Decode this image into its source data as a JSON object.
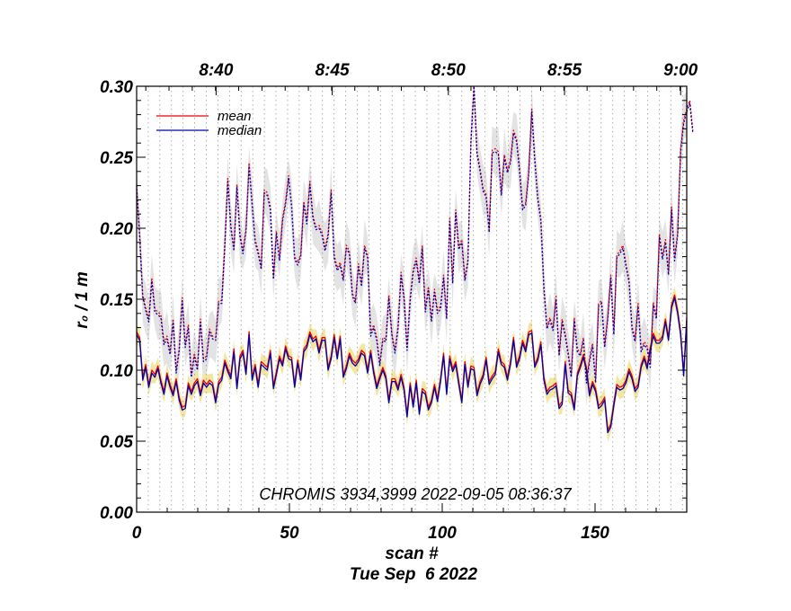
{
  "chart_data": {
    "type": "line",
    "title": "",
    "annotation": "CHROMIS 3934,3999 2022-09-05 08:36:37",
    "xlabel": "scan #",
    "ylabel": "r₀ / 1 m",
    "date_label": "Tue Sep  6 2022",
    "xlim": [
      0,
      180
    ],
    "ylim": [
      0.0,
      0.3
    ],
    "x_ticks": [
      0,
      50,
      100,
      150
    ],
    "x_tick_labels": [
      "0",
      "50",
      "100",
      "150"
    ],
    "y_ticks": [
      0.0,
      0.05,
      0.1,
      0.15,
      0.2,
      0.25,
      0.3
    ],
    "y_tick_labels": [
      "0.00",
      "0.05",
      "0.10",
      "0.15",
      "0.20",
      "0.25",
      "0.30"
    ],
    "top_axis": [
      {
        "label": "8:40",
        "scan": 26
      },
      {
        "label": "8:45",
        "scan": 64
      },
      {
        "label": "8:50",
        "scan": 102
      },
      {
        "label": "8:55",
        "scan": 140
      },
      {
        "label": "9:00",
        "scan": 178
      }
    ],
    "vertical_grid_every_scans": 3.8,
    "legend": {
      "position": "top-left",
      "entries": [
        {
          "name": "mean",
          "color": "#ee0000"
        },
        {
          "name": "median",
          "color": "#0000aa"
        }
      ]
    },
    "colors": {
      "mean": "#ee0000",
      "median": "#0000aa",
      "band_low": "#f2e6a2",
      "band_high": "#e3e3e3",
      "grid": "#999999"
    },
    "low_median": [
      0.125,
      0.121,
      0.093,
      0.102,
      0.088,
      0.098,
      0.095,
      0.101,
      0.091,
      0.083,
      0.096,
      0.088,
      0.082,
      0.092,
      0.079,
      0.072,
      0.073,
      0.089,
      0.083,
      0.089,
      0.092,
      0.082,
      0.091,
      0.088,
      0.091,
      0.089,
      0.077,
      0.09,
      0.093,
      0.105,
      0.099,
      0.094,
      0.113,
      0.087,
      0.108,
      0.112,
      0.097,
      0.125,
      0.093,
      0.102,
      0.088,
      0.104,
      0.102,
      0.1,
      0.112,
      0.087,
      0.097,
      0.108,
      0.103,
      0.115,
      0.108,
      0.107,
      0.088,
      0.105,
      0.093,
      0.113,
      0.116,
      0.125,
      0.12,
      0.122,
      0.112,
      0.121,
      0.121,
      0.1,
      0.108,
      0.123,
      0.108,
      0.122,
      0.095,
      0.101,
      0.11,
      0.105,
      0.103,
      0.106,
      0.112,
      0.11,
      0.098,
      0.112,
      0.098,
      0.087,
      0.094,
      0.1,
      0.094,
      0.077,
      0.092,
      0.092,
      0.086,
      0.095,
      0.086,
      0.067,
      0.089,
      0.074,
      0.091,
      0.069,
      0.085,
      0.083,
      0.072,
      0.077,
      0.088,
      0.078,
      0.092,
      0.11,
      0.083,
      0.108,
      0.099,
      0.104,
      0.09,
      0.077,
      0.104,
      0.088,
      0.101,
      0.1,
      0.082,
      0.09,
      0.095,
      0.107,
      0.09,
      0.094,
      0.097,
      0.113,
      0.104,
      0.102,
      0.093,
      0.104,
      0.121,
      0.102,
      0.108,
      0.119,
      0.113,
      0.125,
      0.126,
      0.102,
      0.107,
      0.118,
      0.093,
      0.083,
      0.086,
      0.087,
      0.089,
      0.073,
      0.076,
      0.104,
      0.084,
      0.082,
      0.072,
      0.096,
      0.102,
      0.109,
      0.1,
      0.082,
      0.09,
      0.085,
      0.073,
      0.075,
      0.079,
      0.056,
      0.06,
      0.075,
      0.088,
      0.086,
      0.087,
      0.091,
      0.099,
      0.094,
      0.085,
      0.088,
      0.102,
      0.108,
      0.101,
      0.114,
      0.124,
      0.119,
      0.119,
      0.122,
      0.134,
      0.121,
      0.144,
      0.151,
      0.14,
      0.125,
      0.096,
      0.135
    ],
    "low_mean": [
      0.127,
      0.123,
      0.095,
      0.104,
      0.09,
      0.1,
      0.097,
      0.103,
      0.093,
      0.085,
      0.098,
      0.09,
      0.084,
      0.094,
      0.081,
      0.074,
      0.075,
      0.091,
      0.085,
      0.091,
      0.094,
      0.084,
      0.093,
      0.09,
      0.093,
      0.091,
      0.079,
      0.092,
      0.095,
      0.107,
      0.101,
      0.096,
      0.115,
      0.089,
      0.11,
      0.114,
      0.099,
      0.127,
      0.095,
      0.104,
      0.09,
      0.106,
      0.104,
      0.102,
      0.114,
      0.089,
      0.099,
      0.11,
      0.105,
      0.117,
      0.11,
      0.109,
      0.09,
      0.107,
      0.095,
      0.115,
      0.118,
      0.127,
      0.122,
      0.124,
      0.114,
      0.123,
      0.123,
      0.102,
      0.11,
      0.125,
      0.11,
      0.124,
      0.097,
      0.103,
      0.112,
      0.107,
      0.105,
      0.108,
      0.114,
      0.112,
      0.1,
      0.114,
      0.1,
      0.089,
      0.096,
      0.102,
      0.096,
      0.079,
      0.094,
      0.094,
      0.088,
      0.097,
      0.088,
      0.069,
      0.091,
      0.076,
      0.093,
      0.071,
      0.087,
      0.085,
      0.074,
      0.079,
      0.09,
      0.08,
      0.094,
      0.112,
      0.085,
      0.11,
      0.101,
      0.106,
      0.092,
      0.079,
      0.106,
      0.09,
      0.103,
      0.102,
      0.084,
      0.092,
      0.097,
      0.109,
      0.092,
      0.096,
      0.099,
      0.115,
      0.106,
      0.104,
      0.095,
      0.106,
      0.123,
      0.104,
      0.11,
      0.121,
      0.115,
      0.127,
      0.128,
      0.104,
      0.109,
      0.12,
      0.095,
      0.085,
      0.088,
      0.089,
      0.091,
      0.075,
      0.078,
      0.106,
      0.086,
      0.084,
      0.074,
      0.098,
      0.104,
      0.111,
      0.102,
      0.084,
      0.092,
      0.087,
      0.075,
      0.077,
      0.081,
      0.058,
      0.062,
      0.077,
      0.09,
      0.088,
      0.089,
      0.093,
      0.101,
      0.096,
      0.087,
      0.09,
      0.104,
      0.11,
      0.103,
      0.116,
      0.126,
      0.121,
      0.121,
      0.124,
      0.136,
      0.123,
      0.146,
      0.153,
      0.142,
      0.127,
      0.098,
      0.137
    ],
    "high_median": [
      0.228,
      0.194,
      0.151,
      0.142,
      0.134,
      0.163,
      0.141,
      0.139,
      0.137,
      0.118,
      0.122,
      0.111,
      0.134,
      0.098,
      0.113,
      0.149,
      0.116,
      0.13,
      0.095,
      0.11,
      0.1,
      0.134,
      0.106,
      0.108,
      0.127,
      0.122,
      0.121,
      0.147,
      0.147,
      0.187,
      0.233,
      0.2,
      0.184,
      0.229,
      0.194,
      0.182,
      0.198,
      0.244,
      0.216,
      0.19,
      0.182,
      0.171,
      0.225,
      0.223,
      0.213,
      0.164,
      0.196,
      0.177,
      0.205,
      0.217,
      0.235,
      0.215,
      0.178,
      0.174,
      0.18,
      0.217,
      0.203,
      0.231,
      0.207,
      0.199,
      0.2,
      0.195,
      0.184,
      0.194,
      0.225,
      0.179,
      0.17,
      0.174,
      0.163,
      0.186,
      0.182,
      0.152,
      0.147,
      0.173,
      0.159,
      0.186,
      0.179,
      0.124,
      0.13,
      0.121,
      0.103,
      0.121,
      0.12,
      0.151,
      0.124,
      0.112,
      0.129,
      0.167,
      0.15,
      0.114,
      0.149,
      0.169,
      0.177,
      0.161,
      0.186,
      0.141,
      0.157,
      0.134,
      0.155,
      0.14,
      0.143,
      0.165,
      0.136,
      0.205,
      0.161,
      0.211,
      0.185,
      0.19,
      0.163,
      0.176,
      0.26,
      0.304,
      0.252,
      0.24,
      0.226,
      0.222,
      0.197,
      0.253,
      0.254,
      0.252,
      0.223,
      0.25,
      0.239,
      0.246,
      0.267,
      0.261,
      0.24,
      0.213,
      0.216,
      0.238,
      0.282,
      0.248,
      0.22,
      0.205,
      0.157,
      0.129,
      0.135,
      0.128,
      0.15,
      0.11,
      0.134,
      0.124,
      0.111,
      0.095,
      0.135,
      0.113,
      0.11,
      0.121,
      0.091,
      0.106,
      0.117,
      0.091,
      0.145,
      0.147,
      0.116,
      0.136,
      0.165,
      0.125,
      0.179,
      0.182,
      0.186,
      0.173,
      0.162,
      0.129,
      0.12,
      0.145,
      0.113,
      0.118,
      0.115,
      0.102,
      0.146,
      0.136,
      0.194,
      0.178,
      0.19,
      0.167,
      0.213,
      0.177,
      0.195,
      0.254,
      0.274,
      0.282,
      0.288,
      0.267
    ],
    "high_mean": [
      0.23,
      0.196,
      0.153,
      0.144,
      0.136,
      0.165,
      0.143,
      0.141,
      0.139,
      0.12,
      0.124,
      0.113,
      0.136,
      0.1,
      0.115,
      0.151,
      0.118,
      0.132,
      0.097,
      0.112,
      0.102,
      0.136,
      0.108,
      0.11,
      0.129,
      0.124,
      0.123,
      0.149,
      0.149,
      0.189,
      0.235,
      0.202,
      0.186,
      0.231,
      0.196,
      0.184,
      0.2,
      0.246,
      0.218,
      0.192,
      0.184,
      0.173,
      0.227,
      0.225,
      0.215,
      0.166,
      0.198,
      0.179,
      0.207,
      0.219,
      0.237,
      0.217,
      0.18,
      0.176,
      0.182,
      0.219,
      0.205,
      0.233,
      0.209,
      0.201,
      0.202,
      0.197,
      0.186,
      0.196,
      0.227,
      0.181,
      0.172,
      0.176,
      0.165,
      0.188,
      0.184,
      0.154,
      0.149,
      0.175,
      0.161,
      0.188,
      0.181,
      0.126,
      0.132,
      0.123,
      0.105,
      0.123,
      0.122,
      0.153,
      0.126,
      0.114,
      0.131,
      0.169,
      0.152,
      0.116,
      0.151,
      0.171,
      0.179,
      0.163,
      0.188,
      0.143,
      0.159,
      0.136,
      0.157,
      0.142,
      0.145,
      0.167,
      0.138,
      0.207,
      0.163,
      0.213,
      0.187,
      0.192,
      0.165,
      0.178,
      0.262,
      0.306,
      0.254,
      0.242,
      0.228,
      0.224,
      0.199,
      0.255,
      0.256,
      0.254,
      0.225,
      0.252,
      0.241,
      0.248,
      0.269,
      0.263,
      0.242,
      0.215,
      0.218,
      0.24,
      0.284,
      0.25,
      0.222,
      0.207,
      0.159,
      0.131,
      0.137,
      0.13,
      0.152,
      0.112,
      0.136,
      0.126,
      0.113,
      0.097,
      0.137,
      0.115,
      0.112,
      0.123,
      0.093,
      0.108,
      0.119,
      0.093,
      0.147,
      0.149,
      0.118,
      0.138,
      0.167,
      0.127,
      0.181,
      0.184,
      0.188,
      0.175,
      0.164,
      0.131,
      0.122,
      0.147,
      0.115,
      0.12,
      0.117,
      0.104,
      0.148,
      0.138,
      0.196,
      0.18,
      0.192,
      0.169,
      0.215,
      0.179,
      0.197,
      0.256,
      0.276,
      0.284,
      0.29,
      0.269
    ]
  }
}
